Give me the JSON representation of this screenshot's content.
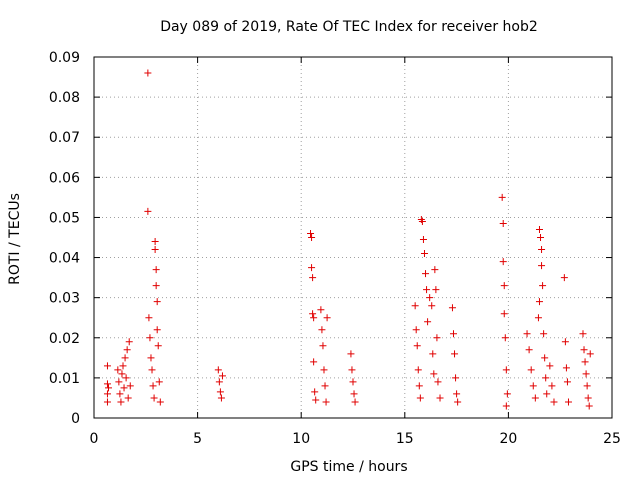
{
  "chart_data": {
    "type": "scatter",
    "title": "Day 089 of 2019, Rate Of TEC Index for receiver hob2",
    "xlabel": "GPS time / hours",
    "ylabel": "ROTI / TECUs",
    "xlim": [
      0,
      25
    ],
    "ylim": [
      0,
      0.09
    ],
    "x_ticks": [
      0,
      5,
      10,
      15,
      20,
      25
    ],
    "x_tick_labels": [
      "0",
      "5",
      "10",
      "15",
      "20",
      "25"
    ],
    "y_ticks": [
      0,
      0.01,
      0.02,
      0.03,
      0.04,
      0.05,
      0.06,
      0.07,
      0.08,
      0.09
    ],
    "y_tick_labels": [
      "0",
      "0.01",
      "0.02",
      "0.03",
      "0.04",
      "0.05",
      "0.06",
      "0.07",
      "0.08",
      "0.09"
    ],
    "grid": true,
    "marker": "plus",
    "color": "#e00000",
    "series": [
      {
        "name": "ROTI",
        "points": [
          [
            0.65,
            0.013
          ],
          [
            0.65,
            0.0085
          ],
          [
            0.65,
            0.006
          ],
          [
            0.65,
            0.004
          ],
          [
            0.7,
            0.0075
          ],
          [
            1.15,
            0.012
          ],
          [
            1.2,
            0.009
          ],
          [
            1.25,
            0.006
          ],
          [
            1.3,
            0.004
          ],
          [
            1.35,
            0.011
          ],
          [
            1.4,
            0.013
          ],
          [
            1.45,
            0.0075
          ],
          [
            1.5,
            0.015
          ],
          [
            1.55,
            0.01
          ],
          [
            1.6,
            0.017
          ],
          [
            1.65,
            0.005
          ],
          [
            1.7,
            0.019
          ],
          [
            1.75,
            0.008
          ],
          [
            2.6,
            0.086
          ],
          [
            2.6,
            0.0515
          ],
          [
            2.65,
            0.025
          ],
          [
            2.7,
            0.02
          ],
          [
            2.75,
            0.015
          ],
          [
            2.8,
            0.012
          ],
          [
            2.85,
            0.008
          ],
          [
            2.9,
            0.005
          ],
          [
            2.95,
            0.044
          ],
          [
            2.95,
            0.042
          ],
          [
            3.0,
            0.037
          ],
          [
            3.0,
            0.033
          ],
          [
            3.05,
            0.029
          ],
          [
            3.05,
            0.022
          ],
          [
            3.1,
            0.018
          ],
          [
            3.15,
            0.009
          ],
          [
            3.2,
            0.004
          ],
          [
            6.0,
            0.012
          ],
          [
            6.05,
            0.009
          ],
          [
            6.1,
            0.0065
          ],
          [
            6.15,
            0.005
          ],
          [
            6.2,
            0.0105
          ],
          [
            10.45,
            0.046
          ],
          [
            10.5,
            0.045
          ],
          [
            10.5,
            0.0375
          ],
          [
            10.55,
            0.035
          ],
          [
            10.55,
            0.026
          ],
          [
            10.6,
            0.025
          ],
          [
            10.6,
            0.014
          ],
          [
            10.65,
            0.0065
          ],
          [
            10.7,
            0.0045
          ],
          [
            10.95,
            0.027
          ],
          [
            11.0,
            0.022
          ],
          [
            11.05,
            0.018
          ],
          [
            11.1,
            0.012
          ],
          [
            11.15,
            0.008
          ],
          [
            11.2,
            0.004
          ],
          [
            11.25,
            0.025
          ],
          [
            12.4,
            0.016
          ],
          [
            12.45,
            0.012
          ],
          [
            12.5,
            0.009
          ],
          [
            12.55,
            0.006
          ],
          [
            12.6,
            0.004
          ],
          [
            15.5,
            0.028
          ],
          [
            15.55,
            0.022
          ],
          [
            15.6,
            0.018
          ],
          [
            15.65,
            0.012
          ],
          [
            15.7,
            0.008
          ],
          [
            15.75,
            0.005
          ],
          [
            15.8,
            0.0495
          ],
          [
            15.85,
            0.049
          ],
          [
            15.9,
            0.0445
          ],
          [
            15.95,
            0.041
          ],
          [
            16.0,
            0.036
          ],
          [
            16.05,
            0.032
          ],
          [
            16.1,
            0.024
          ],
          [
            16.2,
            0.03
          ],
          [
            16.3,
            0.028
          ],
          [
            16.35,
            0.016
          ],
          [
            16.4,
            0.011
          ],
          [
            16.45,
            0.037
          ],
          [
            16.5,
            0.032
          ],
          [
            16.55,
            0.02
          ],
          [
            16.6,
            0.009
          ],
          [
            16.7,
            0.005
          ],
          [
            17.3,
            0.0275
          ],
          [
            17.35,
            0.021
          ],
          [
            17.4,
            0.016
          ],
          [
            17.45,
            0.01
          ],
          [
            17.5,
            0.006
          ],
          [
            17.55,
            0.004
          ],
          [
            19.7,
            0.055
          ],
          [
            19.75,
            0.0485
          ],
          [
            19.75,
            0.039
          ],
          [
            19.8,
            0.033
          ],
          [
            19.8,
            0.026
          ],
          [
            19.85,
            0.02
          ],
          [
            19.9,
            0.012
          ],
          [
            19.95,
            0.006
          ],
          [
            19.9,
            0.003
          ],
          [
            20.9,
            0.021
          ],
          [
            21.0,
            0.017
          ],
          [
            21.1,
            0.012
          ],
          [
            21.2,
            0.008
          ],
          [
            21.3,
            0.005
          ],
          [
            21.5,
            0.047
          ],
          [
            21.55,
            0.045
          ],
          [
            21.6,
            0.042
          ],
          [
            21.6,
            0.038
          ],
          [
            21.65,
            0.033
          ],
          [
            21.5,
            0.029
          ],
          [
            21.45,
            0.025
          ],
          [
            21.7,
            0.021
          ],
          [
            21.75,
            0.015
          ],
          [
            21.8,
            0.01
          ],
          [
            21.85,
            0.006
          ],
          [
            22.0,
            0.013
          ],
          [
            22.1,
            0.008
          ],
          [
            22.2,
            0.004
          ],
          [
            22.7,
            0.035
          ],
          [
            22.75,
            0.019
          ],
          [
            22.8,
            0.0125
          ],
          [
            22.85,
            0.009
          ],
          [
            22.9,
            0.004
          ],
          [
            23.6,
            0.021
          ],
          [
            23.65,
            0.017
          ],
          [
            23.7,
            0.014
          ],
          [
            23.75,
            0.011
          ],
          [
            23.8,
            0.008
          ],
          [
            23.85,
            0.005
          ],
          [
            23.9,
            0.003
          ],
          [
            23.95,
            0.016
          ]
        ]
      }
    ]
  }
}
